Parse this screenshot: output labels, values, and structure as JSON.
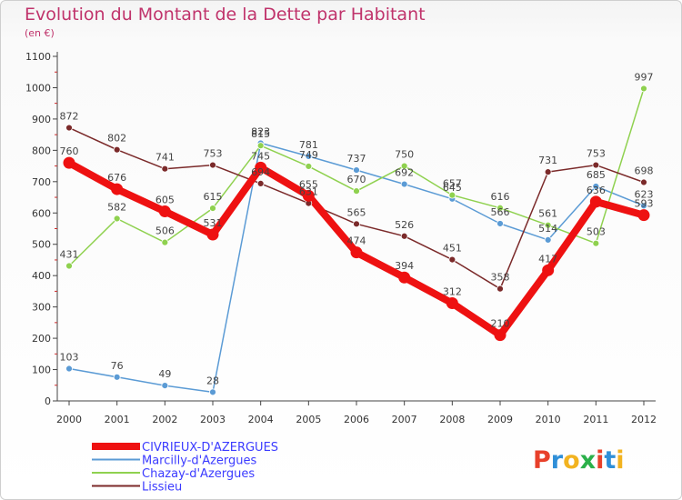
{
  "header": {
    "title": "Evolution du Montant de la Dette par Habitant",
    "unit": "(en €)"
  },
  "logo": {
    "text": "Proxiti",
    "colors": [
      "#e8402a",
      "#2f8fd8",
      "#f2b320",
      "#2bb04a",
      "#e8402a",
      "#2f8fd8",
      "#f2b320"
    ]
  },
  "chart_data": {
    "type": "line",
    "title": "Evolution du Montant de la Dette par Habitant",
    "ylabel": "(en €)",
    "xlabel": "",
    "categories": [
      "2000",
      "2001",
      "2002",
      "2003",
      "2004",
      "2005",
      "2006",
      "2007",
      "2008",
      "2009",
      "2010",
      "2011",
      "2012"
    ],
    "ylim": [
      0,
      1100
    ],
    "yticks": [
      0,
      100,
      200,
      300,
      400,
      500,
      600,
      700,
      800,
      900,
      1000,
      1100
    ],
    "grid": false,
    "legend_position": "bottom-left",
    "series": [
      {
        "name": "CIVRIEUX-D'AZERGUES",
        "color": "#ee1111",
        "label_color": "#3b3bff",
        "emphasis": true,
        "values": [
          760,
          676,
          605,
          531,
          745,
          655,
          474,
          394,
          312,
          210,
          417,
          636,
          593
        ],
        "labels": [
          "760",
          "676",
          "605",
          "531",
          "745",
          "655",
          "474",
          "394",
          "312",
          "210",
          "417",
          "636",
          "593"
        ]
      },
      {
        "name": "Marcilly-d'Azergues",
        "color": "#5b9bd5",
        "label_color": "#3b3bff",
        "emphasis": false,
        "values": [
          103,
          76,
          49,
          28,
          823,
          781,
          737,
          692,
          645,
          566,
          514,
          685,
          623
        ],
        "labels": [
          "103",
          "76",
          "49",
          "28",
          "823",
          "781",
          "737",
          "692",
          "645",
          "566",
          "514",
          "685",
          "623"
        ]
      },
      {
        "name": "Chazay-d'Azergues",
        "color": "#8fd14f",
        "label_color": "#3b3bff",
        "emphasis": false,
        "values": [
          431,
          582,
          506,
          615,
          815,
          749,
          670,
          750,
          657,
          616,
          561,
          503,
          997
        ],
        "labels": [
          "431",
          "582",
          "506",
          "615",
          "815",
          "749",
          "670",
          "750",
          "657",
          "616",
          "561",
          "503",
          "997"
        ]
      },
      {
        "name": "Lissieu",
        "color": "#7b2a2a",
        "label_color": "#3b3bff",
        "emphasis": false,
        "values": [
          872,
          802,
          741,
          753,
          694,
          631,
          565,
          526,
          451,
          358,
          731,
          753,
          698
        ],
        "labels": [
          "872",
          "802",
          "741",
          "753",
          "694",
          "631",
          "565",
          "526",
          "451",
          "358",
          "731",
          "753",
          "698"
        ]
      }
    ]
  }
}
